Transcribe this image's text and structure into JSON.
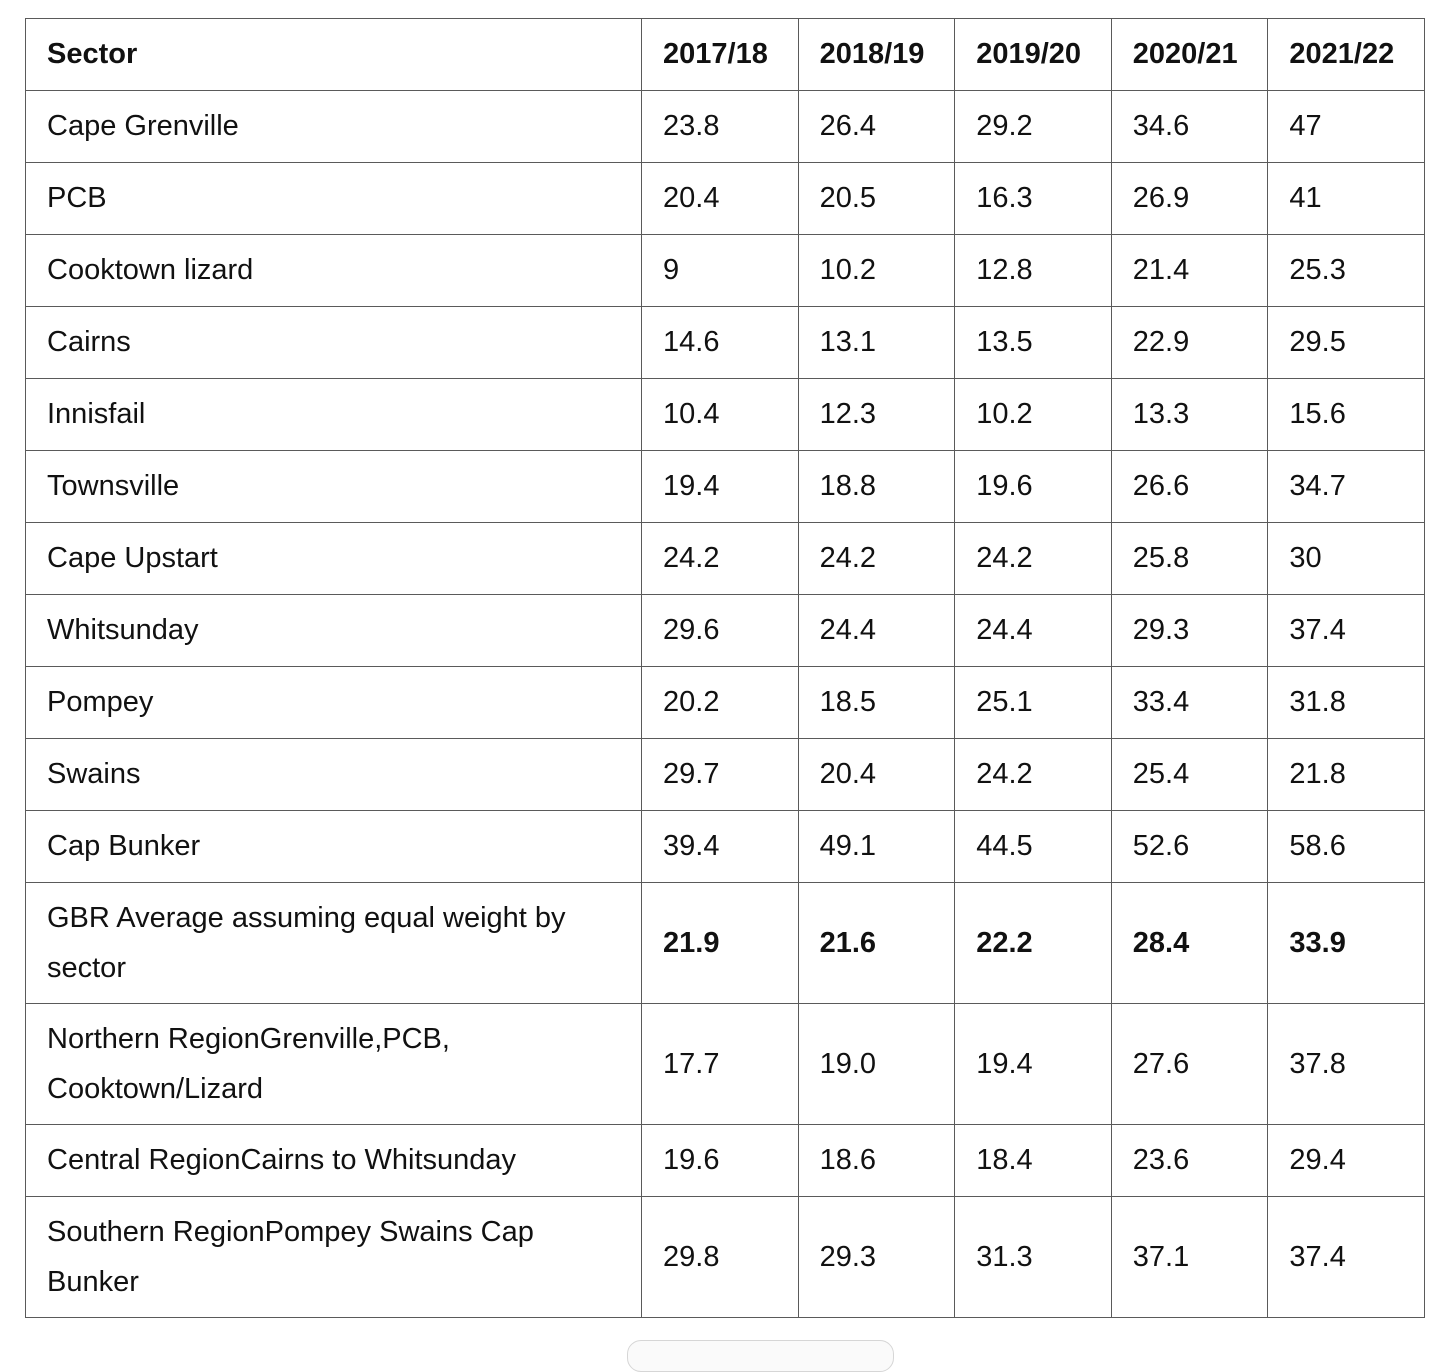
{
  "table": {
    "columns": [
      "Sector",
      "2017/18",
      "2018/19",
      "2019/20",
      "2020/21",
      "2021/22"
    ],
    "rows": [
      {
        "sector": "Cape Grenville",
        "values": [
          "23.8",
          "26.4",
          "29.2",
          "34.6",
          "47"
        ]
      },
      {
        "sector": "PCB",
        "values": [
          "20.4",
          "20.5",
          "16.3",
          "26.9",
          "41"
        ]
      },
      {
        "sector": "Cooktown lizard",
        "values": [
          "9",
          "10.2",
          "12.8",
          "21.4",
          "25.3"
        ]
      },
      {
        "sector": "Cairns",
        "values": [
          "14.6",
          "13.1",
          "13.5",
          "22.9",
          "29.5"
        ]
      },
      {
        "sector": "Innisfail",
        "values": [
          "10.4",
          "12.3",
          "10.2",
          "13.3",
          "15.6"
        ]
      },
      {
        "sector": "Townsville",
        "values": [
          "19.4",
          "18.8",
          "19.6",
          "26.6",
          "34.7"
        ]
      },
      {
        "sector": "Cape Upstart",
        "values": [
          "24.2",
          "24.2",
          "24.2",
          "25.8",
          "30"
        ]
      },
      {
        "sector": "Whitsunday",
        "values": [
          "29.6",
          "24.4",
          "24.4",
          "29.3",
          "37.4"
        ]
      },
      {
        "sector": "Pompey",
        "values": [
          "20.2",
          "18.5",
          "25.1",
          "33.4",
          "31.8"
        ]
      },
      {
        "sector": "Swains",
        "values": [
          "29.7",
          "20.4",
          "24.2",
          "25.4",
          "21.8"
        ]
      },
      {
        "sector": "Cap Bunker",
        "values": [
          "39.4",
          "49.1",
          "44.5",
          "52.6",
          "58.6"
        ]
      },
      {
        "sector": "GBR Average assuming equal weight by sector",
        "values": [
          "21.9",
          "21.6",
          "22.2",
          "28.4",
          "33.9"
        ]
      },
      {
        "sector": "Northern RegionGrenville,PCB, Cooktown/Lizard",
        "values": [
          "17.7",
          "19.0",
          "19.4",
          "27.6",
          "37.8"
        ]
      },
      {
        "sector": "Central RegionCairns to Whitsunday",
        "values": [
          "19.6",
          "18.6",
          "18.4",
          "23.6",
          "29.4"
        ]
      },
      {
        "sector": "Southern RegionPompey Swains Cap Bunker",
        "values": [
          "29.8",
          "29.3",
          "31.3",
          "37.1",
          "37.4"
        ]
      }
    ]
  }
}
